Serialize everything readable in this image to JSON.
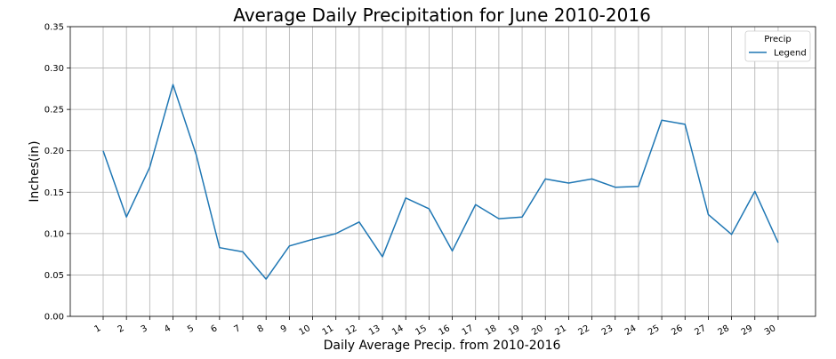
{
  "chart_data": {
    "type": "line",
    "title": "Average Daily Precipitation for June 2010-2016",
    "xlabel": "Daily Average Precip. from 2010-2016",
    "ylabel": "Inches(in)",
    "categories": [
      "1",
      "2",
      "3",
      "4",
      "5",
      "6",
      "7",
      "8",
      "9",
      "10",
      "11",
      "12",
      "13",
      "14",
      "15",
      "16",
      "17",
      "18",
      "19",
      "20",
      "21",
      "22",
      "23",
      "24",
      "25",
      "26",
      "27",
      "28",
      "29",
      "30"
    ],
    "series": [
      {
        "name": "Legend",
        "color": "#1f77b4",
        "values": [
          0.2,
          0.12,
          0.18,
          0.28,
          0.195,
          0.083,
          0.078,
          0.045,
          0.085,
          0.093,
          0.1,
          0.114,
          0.072,
          0.143,
          0.13,
          0.079,
          0.135,
          0.118,
          0.12,
          0.166,
          0.161,
          0.166,
          0.156,
          0.157,
          0.237,
          0.232,
          0.123,
          0.099,
          0.151,
          0.089
        ]
      }
    ],
    "ylim": [
      0.0,
      0.35
    ],
    "yticks": [
      "0.00",
      "0.05",
      "0.10",
      "0.15",
      "0.20",
      "0.25",
      "0.30",
      "0.35"
    ],
    "grid": true,
    "legend": {
      "title": "Precip",
      "placement": "top-right"
    }
  }
}
